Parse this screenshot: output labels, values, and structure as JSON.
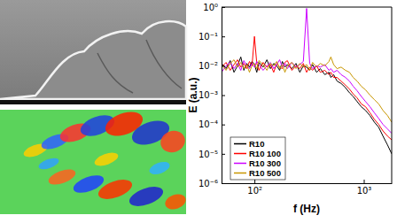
{
  "chart_data": {
    "type": "line",
    "xlabel": "f (Hz)",
    "ylabel": "E (a.u.)",
    "log": true,
    "grid": false,
    "legend": "lower left",
    "x": [
      50,
      55,
      60,
      65,
      70,
      75,
      80,
      85,
      90,
      95,
      100,
      105,
      110,
      120,
      130,
      140,
      150,
      160,
      170,
      180,
      190,
      200,
      220,
      240,
      260,
      280,
      300,
      320,
      340,
      370,
      400,
      440,
      480,
      500,
      530,
      570,
      620,
      680,
      740,
      800,
      870,
      950,
      1040,
      1140,
      1250,
      1370,
      1500,
      1650,
      1800
    ],
    "xlim": [
      50,
      1800
    ],
    "xticks": [
      {
        "value": 100,
        "label": "10²"
      },
      {
        "value": 1000,
        "label": "10³"
      }
    ],
    "ylim": [
      1e-06,
      1
    ],
    "yticks": [
      {
        "value": 1,
        "label": "10⁰"
      },
      {
        "value": 0.1,
        "label": "10⁻¹"
      },
      {
        "value": 0.01,
        "label": "10⁻²"
      },
      {
        "value": 0.001,
        "label": "10⁻³"
      },
      {
        "value": 0.0001,
        "label": "10⁻⁴"
      },
      {
        "value": 1e-05,
        "label": "10⁻⁵"
      },
      {
        "value": 1e-06,
        "label": "10⁻⁶"
      }
    ],
    "series": [
      {
        "name": "R10",
        "color": "#000000",
        "values": [
          0.012,
          0.008,
          0.015,
          0.006,
          0.01,
          0.02,
          0.007,
          0.012,
          0.009,
          0.014,
          0.011,
          0.006,
          0.013,
          0.009,
          0.016,
          0.008,
          0.012,
          0.01,
          0.007,
          0.014,
          0.009,
          0.011,
          0.008,
          0.012,
          0.006,
          0.01,
          0.009,
          0.007,
          0.011,
          0.006,
          0.008,
          0.005,
          0.006,
          0.004,
          0.005,
          0.003,
          0.0025,
          0.0018,
          0.0012,
          0.0009,
          0.0006,
          0.0004,
          0.0003,
          0.0002,
          0.00012,
          8e-05,
          4e-05,
          2e-05,
          1e-05
        ]
      },
      {
        "name": "R10 100",
        "color": "#ff0000",
        "values": [
          0.009,
          0.013,
          0.007,
          0.011,
          0.016,
          0.009,
          0.012,
          0.008,
          0.014,
          0.01,
          0.1,
          0.012,
          0.007,
          0.013,
          0.009,
          0.011,
          0.006,
          0.012,
          0.009,
          0.008,
          0.013,
          0.015,
          0.007,
          0.01,
          0.008,
          0.012,
          0.006,
          0.009,
          0.007,
          0.01,
          0.006,
          0.007,
          0.005,
          0.006,
          0.004,
          0.004,
          0.003,
          0.0022,
          0.0016,
          0.0011,
          0.0008,
          0.0005,
          0.0004,
          0.00025,
          0.00015,
          0.0001,
          6e-05,
          4e-05,
          3e-05
        ]
      },
      {
        "name": "R10 300",
        "color": "#cc00ff",
        "values": [
          0.006,
          0.01,
          0.013,
          0.008,
          0.012,
          0.007,
          0.015,
          0.01,
          0.008,
          0.012,
          0.009,
          0.014,
          0.011,
          0.007,
          0.01,
          0.013,
          0.008,
          0.011,
          0.016,
          0.009,
          0.012,
          0.008,
          0.013,
          0.009,
          0.011,
          0.014,
          0.9,
          0.012,
          0.008,
          0.01,
          0.009,
          0.011,
          0.007,
          0.008,
          0.006,
          0.007,
          0.005,
          0.004,
          0.003,
          0.002,
          0.0014,
          0.0009,
          0.0006,
          0.0004,
          0.00025,
          0.00016,
          0.0001,
          7e-05,
          5e-05
        ]
      },
      {
        "name": "R10 500",
        "color": "#c89600",
        "values": [
          0.011,
          0.007,
          0.012,
          0.016,
          0.009,
          0.013,
          0.008,
          0.011,
          0.006,
          0.01,
          0.012,
          0.008,
          0.015,
          0.011,
          0.007,
          0.012,
          0.01,
          0.014,
          0.008,
          0.011,
          0.006,
          0.01,
          0.013,
          0.008,
          0.012,
          0.009,
          0.011,
          0.007,
          0.013,
          0.009,
          0.012,
          0.01,
          0.014,
          0.02,
          0.011,
          0.008,
          0.009,
          0.007,
          0.006,
          0.004,
          0.003,
          0.002,
          0.0015,
          0.001,
          0.0007,
          0.0005,
          0.0003,
          0.0002,
          0.00012
        ]
      }
    ]
  }
}
